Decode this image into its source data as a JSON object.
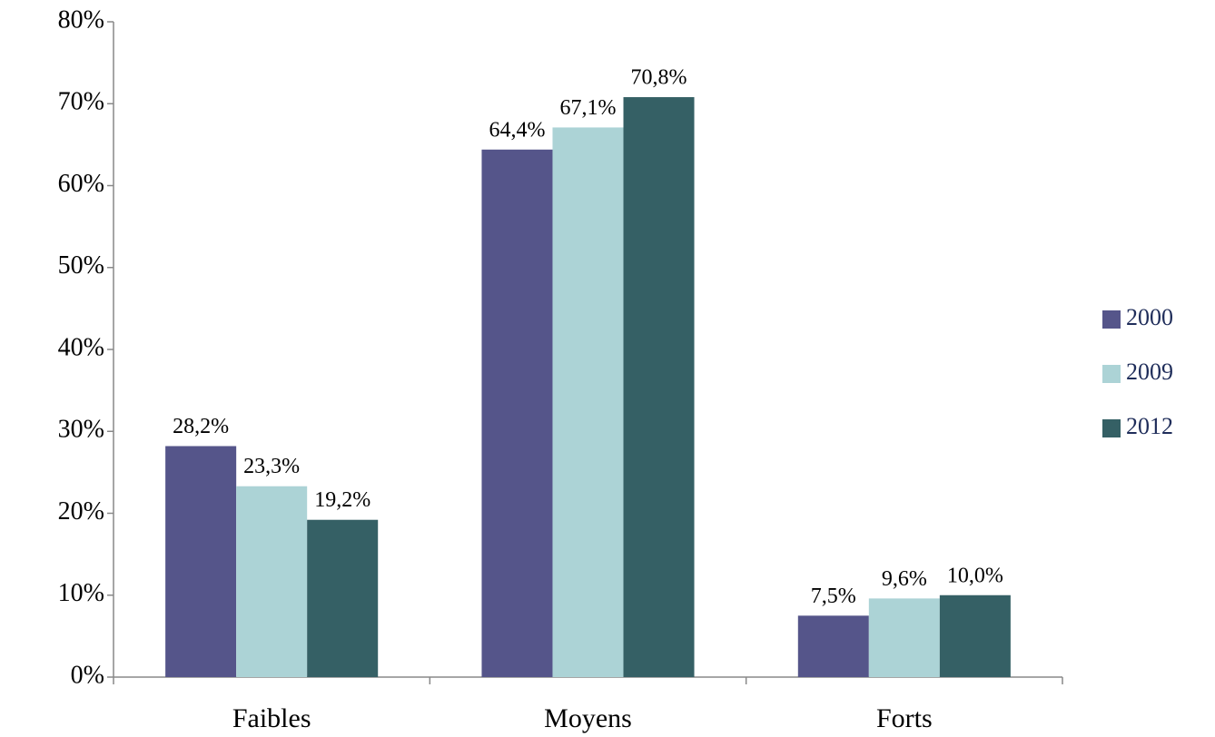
{
  "chart_data": {
    "type": "bar",
    "categories": [
      "Faibles",
      "Moyens",
      "Forts"
    ],
    "series": [
      {
        "name": "2000",
        "color": "#55558a",
        "values": [
          28.2,
          64.4,
          7.5
        ],
        "value_labels": [
          "28,2%",
          "64,4%",
          "7,5%"
        ]
      },
      {
        "name": "2009",
        "color": "#acd3d6",
        "values": [
          23.3,
          67.1,
          9.6
        ],
        "value_labels": [
          "23,3%",
          "67,1%",
          "9,6%"
        ]
      },
      {
        "name": "2012",
        "color": "#356065",
        "values": [
          19.2,
          70.8,
          10.0
        ],
        "value_labels": [
          "19,2%",
          "70,8%",
          "10,0%"
        ]
      }
    ],
    "ylim": [
      0,
      80
    ],
    "yticks": [
      {
        "value": 0,
        "label": "0%"
      },
      {
        "value": 10,
        "label": "10%"
      },
      {
        "value": 20,
        "label": "20%"
      },
      {
        "value": 30,
        "label": "30%"
      },
      {
        "value": 40,
        "label": "40%"
      },
      {
        "value": 50,
        "label": "50%"
      },
      {
        "value": 60,
        "label": "60%"
      },
      {
        "value": 70,
        "label": "70%"
      },
      {
        "value": 80,
        "label": "80%"
      }
    ],
    "grid": false,
    "legend": "right"
  }
}
